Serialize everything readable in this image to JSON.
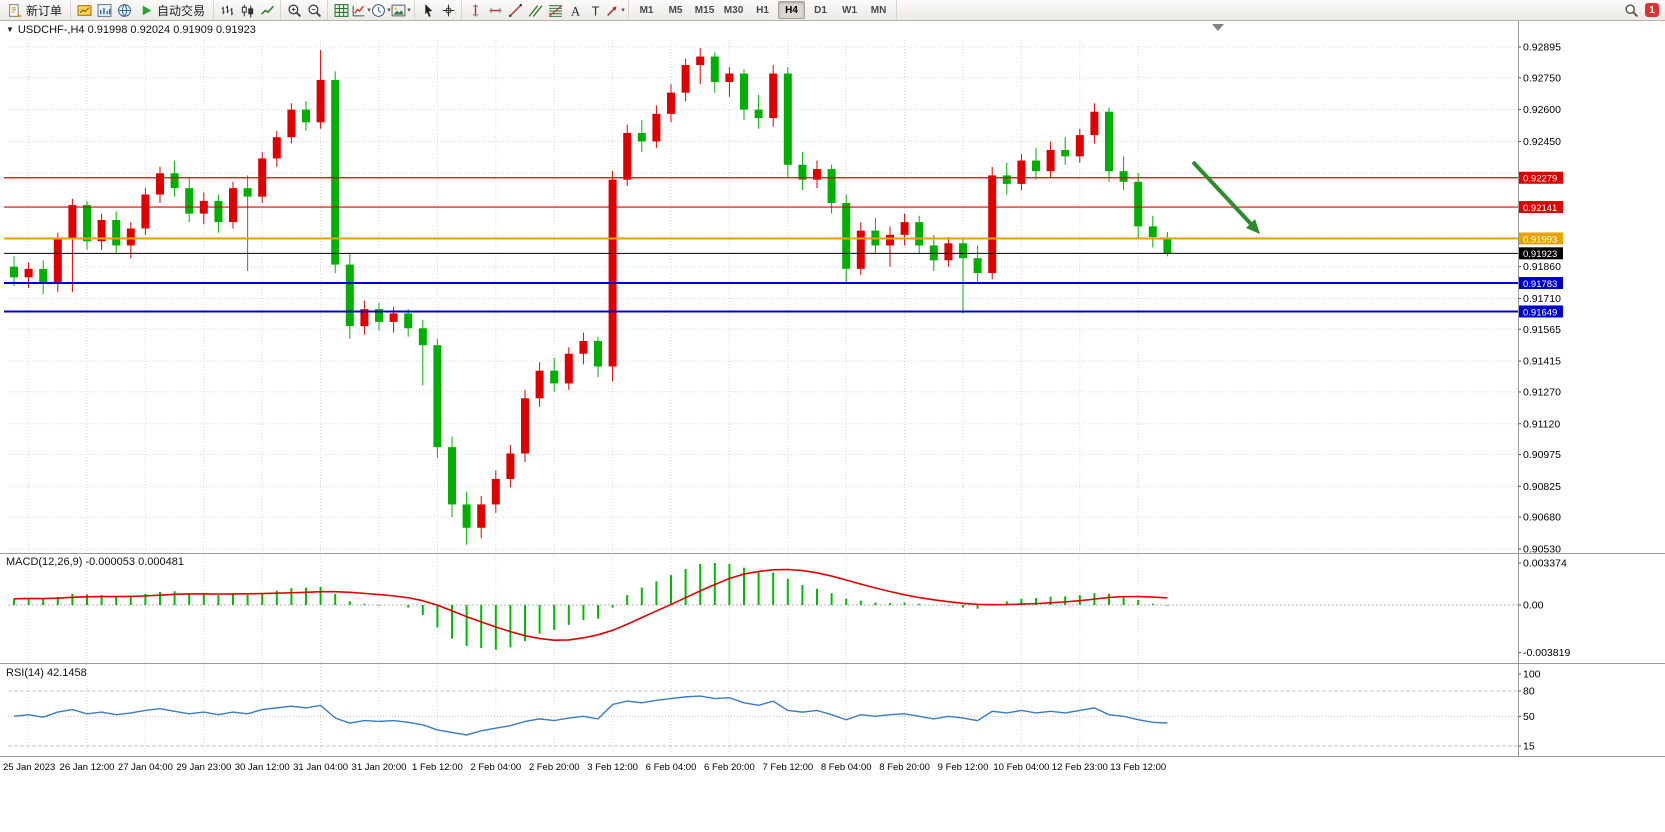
{
  "toolbar": {
    "groups": [
      {
        "items": [
          {
            "name": "new-order-button",
            "icon": "doc",
            "label": "新订单"
          }
        ]
      },
      {
        "items": [
          {
            "name": "market-watch-button",
            "icon": "quotes"
          },
          {
            "name": "charts-window-button",
            "icon": "charts"
          },
          {
            "name": "community-button",
            "icon": "globe"
          },
          {
            "name": "auto-trading-button",
            "icon": "play",
            "label": "自动交易"
          }
        ]
      },
      {
        "items": [
          {
            "name": "bar-chart-button",
            "icon": "bars"
          },
          {
            "name": "candlestick-chart-button",
            "icon": "candles"
          },
          {
            "name": "line-chart-button",
            "icon": "linechart"
          }
        ]
      },
      {
        "items": [
          {
            "name": "zoom-in-button",
            "icon": "zoomin"
          },
          {
            "name": "zoom-out-button",
            "icon": "zoomout"
          }
        ]
      },
      {
        "items": [
          {
            "name": "tile-windows-button",
            "icon": "grid"
          },
          {
            "name": "indicators-button",
            "icon": "indicator",
            "caret": true
          },
          {
            "name": "periods-button",
            "icon": "clock",
            "caret": true
          },
          {
            "name": "templates-button",
            "icon": "picture",
            "caret": true
          }
        ]
      },
      {
        "items": [
          {
            "name": "cursor-button",
            "icon": "cursor"
          },
          {
            "name": "crosshair-button",
            "icon": "crosshair"
          }
        ]
      },
      {
        "items": [
          {
            "name": "vertical-line-button",
            "icon": "vline"
          },
          {
            "name": "horizontal-line-button",
            "icon": "hline"
          },
          {
            "name": "trendline-button",
            "icon": "trend"
          },
          {
            "name": "channel-button",
            "icon": "channel"
          },
          {
            "name": "fibonacci-button",
            "icon": "fib"
          },
          {
            "name": "text-button",
            "icon": "textA"
          },
          {
            "name": "label-button",
            "icon": "textT"
          },
          {
            "name": "arrows-button",
            "icon": "arrows",
            "caret": true
          }
        ]
      }
    ],
    "timeframes": [
      "M1",
      "M5",
      "M15",
      "M30",
      "H1",
      "H4",
      "D1",
      "W1",
      "MN"
    ],
    "active_timeframe": "H4",
    "search": {
      "name": "search-button",
      "icon": "search"
    },
    "alert_count": "1"
  },
  "chart_header": {
    "symbol": "USDCHF-",
    "period": "H4",
    "full_title": "USDCHF-,H4  0.91998 0.92024 0.91909 0.91923"
  },
  "chart_data": {
    "type": "candlestick",
    "symbol": "USDCHF",
    "timeframe": "H4",
    "ohlc_display": {
      "open": "0.91998",
      "high": "0.92024",
      "low": "0.91909",
      "close": "0.91923"
    },
    "price_axis_labels": [
      "0.92895",
      "0.92750",
      "0.92600",
      "0.92450",
      "0.91860",
      "0.91710",
      "0.91565",
      "0.91415",
      "0.91270",
      "0.91120",
      "0.90975",
      "0.90825",
      "0.90680",
      "0.90530"
    ],
    "price_grid_hidden": [
      "0.92300",
      "0.92150",
      "0.92000"
    ],
    "price_scale": {
      "top_price": 0.92895,
      "bottom_price": 0.9053
    },
    "time_labels": [
      "25 Jan 2023",
      "26 Jan 12:00",
      "27 Jan 04:00",
      "29 Jan 23:00",
      "30 Jan 12:00",
      "31 Jan 04:00",
      "31 Jan 20:00",
      "1 Feb 12:00",
      "2 Feb 04:00",
      "2 Feb 20:00",
      "3 Feb 12:00",
      "6 Feb 04:00",
      "6 Feb 20:00",
      "7 Feb 12:00",
      "8 Feb 04:00",
      "8 Feb 20:00",
      "9 Feb 12:00",
      "10 Feb 04:00",
      "12 Feb 23:00",
      "13 Feb 12:00"
    ],
    "candles": [
      [
        0.9186,
        0.9191,
        0.9177,
        0.9181
      ],
      [
        0.9181,
        0.9188,
        0.9176,
        0.9185
      ],
      [
        0.9185,
        0.9189,
        0.9173,
        0.9178
      ],
      [
        0.9178,
        0.9202,
        0.9174,
        0.9199
      ],
      [
        0.9199,
        0.9218,
        0.9174,
        0.9215
      ],
      [
        0.9215,
        0.9217,
        0.9194,
        0.9198
      ],
      [
        0.9198,
        0.9211,
        0.9194,
        0.9208
      ],
      [
        0.9208,
        0.9212,
        0.9192,
        0.9196
      ],
      [
        0.9196,
        0.9207,
        0.919,
        0.9204
      ],
      [
        0.9204,
        0.9223,
        0.9201,
        0.922
      ],
      [
        0.922,
        0.9233,
        0.9216,
        0.923
      ],
      [
        0.923,
        0.9236,
        0.9219,
        0.9223
      ],
      [
        0.9223,
        0.9228,
        0.9207,
        0.9211
      ],
      [
        0.9211,
        0.9221,
        0.9206,
        0.9217
      ],
      [
        0.9217,
        0.922,
        0.9202,
        0.9207
      ],
      [
        0.9207,
        0.9226,
        0.9204,
        0.9223
      ],
      [
        0.9223,
        0.9229,
        0.9184,
        0.9219
      ],
      [
        0.9219,
        0.924,
        0.9216,
        0.9237
      ],
      [
        0.9237,
        0.925,
        0.9233,
        0.9247
      ],
      [
        0.9247,
        0.9263,
        0.9244,
        0.926
      ],
      [
        0.926,
        0.9264,
        0.925,
        0.9254
      ],
      [
        0.9254,
        0.9288,
        0.9251,
        0.9274
      ],
      [
        0.9274,
        0.9278,
        0.9183,
        0.9187
      ],
      [
        0.9187,
        0.9192,
        0.9152,
        0.9158
      ],
      [
        0.9158,
        0.917,
        0.9154,
        0.9166
      ],
      [
        0.9166,
        0.9169,
        0.9156,
        0.916
      ],
      [
        0.916,
        0.9167,
        0.9155,
        0.9164
      ],
      [
        0.9164,
        0.9166,
        0.9153,
        0.9157
      ],
      [
        0.9157,
        0.9161,
        0.913,
        0.9149
      ],
      [
        0.9149,
        0.9152,
        0.9096,
        0.9101
      ],
      [
        0.9101,
        0.9106,
        0.9068,
        0.9074
      ],
      [
        0.9074,
        0.908,
        0.9055,
        0.9063
      ],
      [
        0.9063,
        0.9078,
        0.9058,
        0.9074
      ],
      [
        0.9074,
        0.909,
        0.907,
        0.9086
      ],
      [
        0.9086,
        0.9102,
        0.9082,
        0.9098
      ],
      [
        0.9098,
        0.9128,
        0.9094,
        0.9124
      ],
      [
        0.9124,
        0.9141,
        0.912,
        0.9137
      ],
      [
        0.9137,
        0.9143,
        0.9127,
        0.9131
      ],
      [
        0.9131,
        0.9148,
        0.9128,
        0.9145
      ],
      [
        0.9145,
        0.9155,
        0.914,
        0.9151
      ],
      [
        0.9151,
        0.9153,
        0.9134,
        0.9139
      ],
      [
        0.9139,
        0.9231,
        0.9132,
        0.9227
      ],
      [
        0.9227,
        0.9253,
        0.9224,
        0.9249
      ],
      [
        0.9249,
        0.9255,
        0.924,
        0.9245
      ],
      [
        0.9245,
        0.9262,
        0.9242,
        0.9258
      ],
      [
        0.9258,
        0.9272,
        0.9254,
        0.9268
      ],
      [
        0.9268,
        0.9284,
        0.9264,
        0.9281
      ],
      [
        0.9281,
        0.9289,
        0.9272,
        0.9285
      ],
      [
        0.9285,
        0.9287,
        0.9268,
        0.9273
      ],
      [
        0.9273,
        0.928,
        0.9266,
        0.9277
      ],
      [
        0.9277,
        0.9279,
        0.9255,
        0.926
      ],
      [
        0.926,
        0.9267,
        0.9251,
        0.9256
      ],
      [
        0.9256,
        0.9281,
        0.9252,
        0.9277
      ],
      [
        0.9277,
        0.928,
        0.9228,
        0.9234
      ],
      [
        0.9234,
        0.924,
        0.9222,
        0.9227
      ],
      [
        0.9227,
        0.9236,
        0.9223,
        0.9232
      ],
      [
        0.9232,
        0.9234,
        0.9211,
        0.9216
      ],
      [
        0.9216,
        0.922,
        0.9178,
        0.9185
      ],
      [
        0.9185,
        0.9207,
        0.9182,
        0.9203
      ],
      [
        0.9203,
        0.9209,
        0.9192,
        0.9196
      ],
      [
        0.9196,
        0.9205,
        0.9186,
        0.9201
      ],
      [
        0.9201,
        0.9211,
        0.9196,
        0.9207
      ],
      [
        0.9207,
        0.921,
        0.9192,
        0.9196
      ],
      [
        0.9196,
        0.9201,
        0.9184,
        0.9189
      ],
      [
        0.9189,
        0.92,
        0.9186,
        0.9197
      ],
      [
        0.9197,
        0.9199,
        0.9164,
        0.919
      ],
      [
        0.919,
        0.9196,
        0.9178,
        0.9183
      ],
      [
        0.9183,
        0.9233,
        0.918,
        0.9229
      ],
      [
        0.9229,
        0.9235,
        0.922,
        0.9225
      ],
      [
        0.9225,
        0.9239,
        0.9222,
        0.9236
      ],
      [
        0.9236,
        0.9242,
        0.9227,
        0.9231
      ],
      [
        0.9231,
        0.9245,
        0.9228,
        0.9241
      ],
      [
        0.9241,
        0.9247,
        0.9234,
        0.9238
      ],
      [
        0.9238,
        0.9251,
        0.9235,
        0.9248
      ],
      [
        0.9248,
        0.9263,
        0.9244,
        0.9259
      ],
      [
        0.9259,
        0.9261,
        0.9226,
        0.9231
      ],
      [
        0.9231,
        0.9238,
        0.9222,
        0.9226
      ],
      [
        0.9226,
        0.923,
        0.9199,
        0.9205
      ],
      [
        0.9205,
        0.921,
        0.9195,
        0.92
      ],
      [
        0.91998,
        0.92024,
        0.91909,
        0.91923
      ]
    ],
    "levels": [
      {
        "price": 0.92279,
        "label": "0.92279",
        "color": "#dd0000",
        "width": 1.2,
        "kind": "resistance-line"
      },
      {
        "price": 0.92141,
        "label": "0.92141",
        "color": "#dd0000",
        "width": 1.2,
        "kind": "resistance-line"
      },
      {
        "price": 0.91993,
        "label": "0.91993",
        "color": "#e8a200",
        "width": 2,
        "kind": "pivot-line"
      },
      {
        "price": 0.91923,
        "label": "0.91923",
        "color": "#000000",
        "width": 1,
        "kind": "current-price-line"
      },
      {
        "price": 0.91783,
        "label": "0.91783",
        "color": "#0000cc",
        "width": 2,
        "kind": "support-line"
      },
      {
        "price": 0.91649,
        "label": "0.91649",
        "color": "#0000cc",
        "width": 2,
        "kind": "support-line"
      }
    ],
    "macd": {
      "display": "MACD(12,26,9) -0.000053 0.000481",
      "axis": [
        "0.003374",
        "0.00",
        "-0.003819"
      ],
      "histogram": [
        0.0005,
        0.00055,
        0.0005,
        0.00065,
        0.0009,
        0.00085,
        0.0008,
        0.0007,
        0.00075,
        0.0009,
        0.00105,
        0.0011,
        0.00095,
        0.0009,
        0.0008,
        0.00085,
        0.0008,
        0.00095,
        0.00115,
        0.00135,
        0.0014,
        0.00145,
        0.0009,
        0.0003,
        0.0001,
        -5e-05,
        0,
        -0.0002,
        -0.0008,
        -0.0018,
        -0.0027,
        -0.0033,
        -0.00345,
        -0.0036,
        -0.0034,
        -0.0029,
        -0.0023,
        -0.002,
        -0.0016,
        -0.0012,
        -0.0011,
        -0.0002,
        0.0008,
        0.0014,
        0.0019,
        0.0024,
        0.0029,
        0.0033,
        0.00337,
        0.0033,
        0.003,
        0.0027,
        0.0026,
        0.0021,
        0.0016,
        0.0013,
        0.00095,
        0.0005,
        0.00035,
        0.0002,
        0.00015,
        0.0002,
        0.0001,
        0,
        -5e-05,
        -0.0002,
        -0.0003,
        0.0001,
        0.0003,
        0.0005,
        0.00055,
        0.00065,
        0.0007,
        0.0008,
        0.00095,
        0.0009,
        0.0007,
        0.0004,
        0.0001,
        -5.3e-05
      ]
    },
    "rsi": {
      "display": "RSI(14) 42.1458",
      "axis": [
        "100",
        "80",
        "50",
        "15"
      ],
      "levels": [
        80,
        50,
        15
      ],
      "values": [
        50,
        52,
        49,
        55,
        58,
        53,
        55,
        52,
        54,
        57,
        59,
        56,
        53,
        55,
        52,
        55,
        53,
        58,
        60,
        62,
        60,
        63,
        48,
        42,
        45,
        44,
        45,
        43,
        40,
        34,
        31,
        28,
        33,
        36,
        39,
        44,
        47,
        45,
        48,
        50,
        47,
        64,
        68,
        66,
        69,
        71,
        73,
        74,
        71,
        72,
        66,
        63,
        68,
        57,
        55,
        57,
        52,
        46,
        52,
        50,
        52,
        53,
        50,
        47,
        50,
        48,
        45,
        56,
        54,
        57,
        54,
        56,
        54,
        57,
        60,
        52,
        50,
        46,
        43,
        42.15
      ]
    },
    "annotations": {
      "arrow_direction": "down-right"
    },
    "colors": {
      "bull": "#e00000",
      "bear": "#00b000",
      "macd_histogram": "#00bb00",
      "macd_signal": "#e00000",
      "rsi_line": "#3b7bbf",
      "arrow": "#2e8b2e",
      "grid": "#d8d8d8",
      "badge_text": "#ffffff"
    }
  }
}
